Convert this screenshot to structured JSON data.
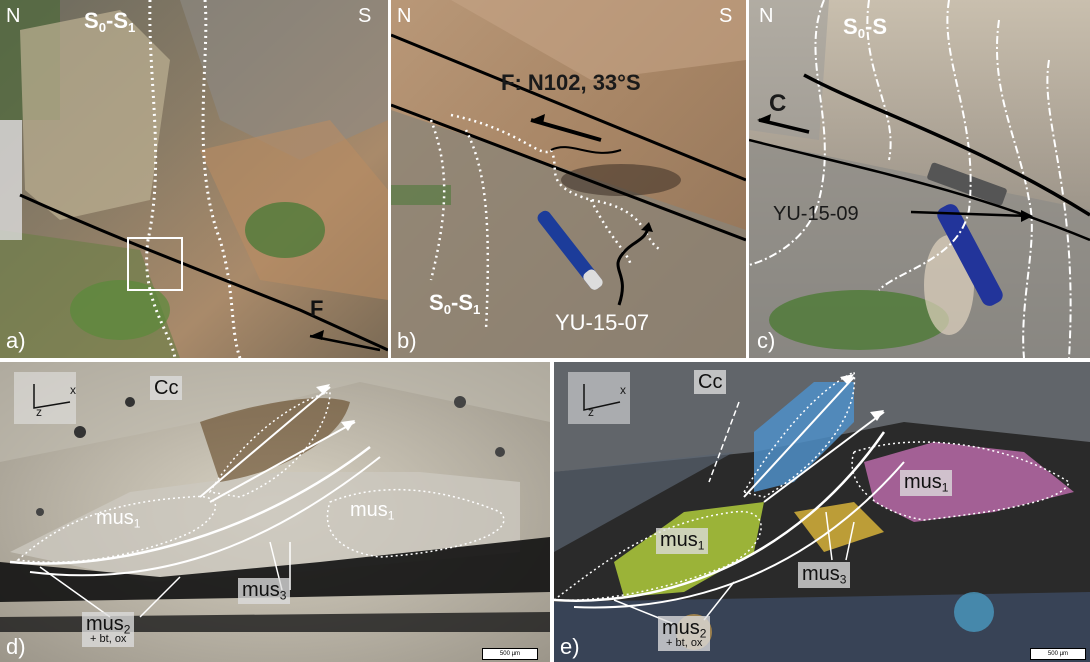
{
  "panels": {
    "a": {
      "letter": "a)",
      "compass_n": "N",
      "compass_s": "S",
      "foliation": {
        "base": "S",
        "sub0": "0",
        "dash": "-S",
        "sub1": "1"
      },
      "fault": "F"
    },
    "b": {
      "letter": "b)",
      "compass_n": "N",
      "compass_s": "S",
      "fault_label": "F: N102, 33°S",
      "foliation": {
        "base": "S",
        "sub0": "0",
        "dash": "-S",
        "sub1": "1"
      },
      "sample": "YU-15-07"
    },
    "c": {
      "letter": "c)",
      "compass_n": "N",
      "foliation": {
        "base": "S",
        "sub0": "0",
        "dash": "-S"
      },
      "shear": "C",
      "sample": "YU-15-09"
    },
    "d": {
      "letter": "d)",
      "axis_x": "x",
      "axis_z": "z",
      "mineral_cc": "Cc",
      "mus1_a": {
        "base": "mus",
        "sub": "1"
      },
      "mus1_b": {
        "base": "mus",
        "sub": "1"
      },
      "mus3": {
        "base": "mus",
        "sub": "3"
      },
      "mus2": {
        "base": "mus",
        "sub": "2",
        "note": "+ bt, ox"
      },
      "scale": "500 µm"
    },
    "e": {
      "letter": "e)",
      "axis_x": "x",
      "axis_z": "z",
      "mineral_cc": "Cc",
      "mus1_a": {
        "base": "mus",
        "sub": "1"
      },
      "mus1_b": {
        "base": "mus",
        "sub": "1"
      },
      "mus3": {
        "base": "mus",
        "sub": "3"
      },
      "mus2": {
        "base": "mus",
        "sub": "2",
        "note": "+ bt, ox"
      },
      "scale": "500 µm"
    }
  }
}
